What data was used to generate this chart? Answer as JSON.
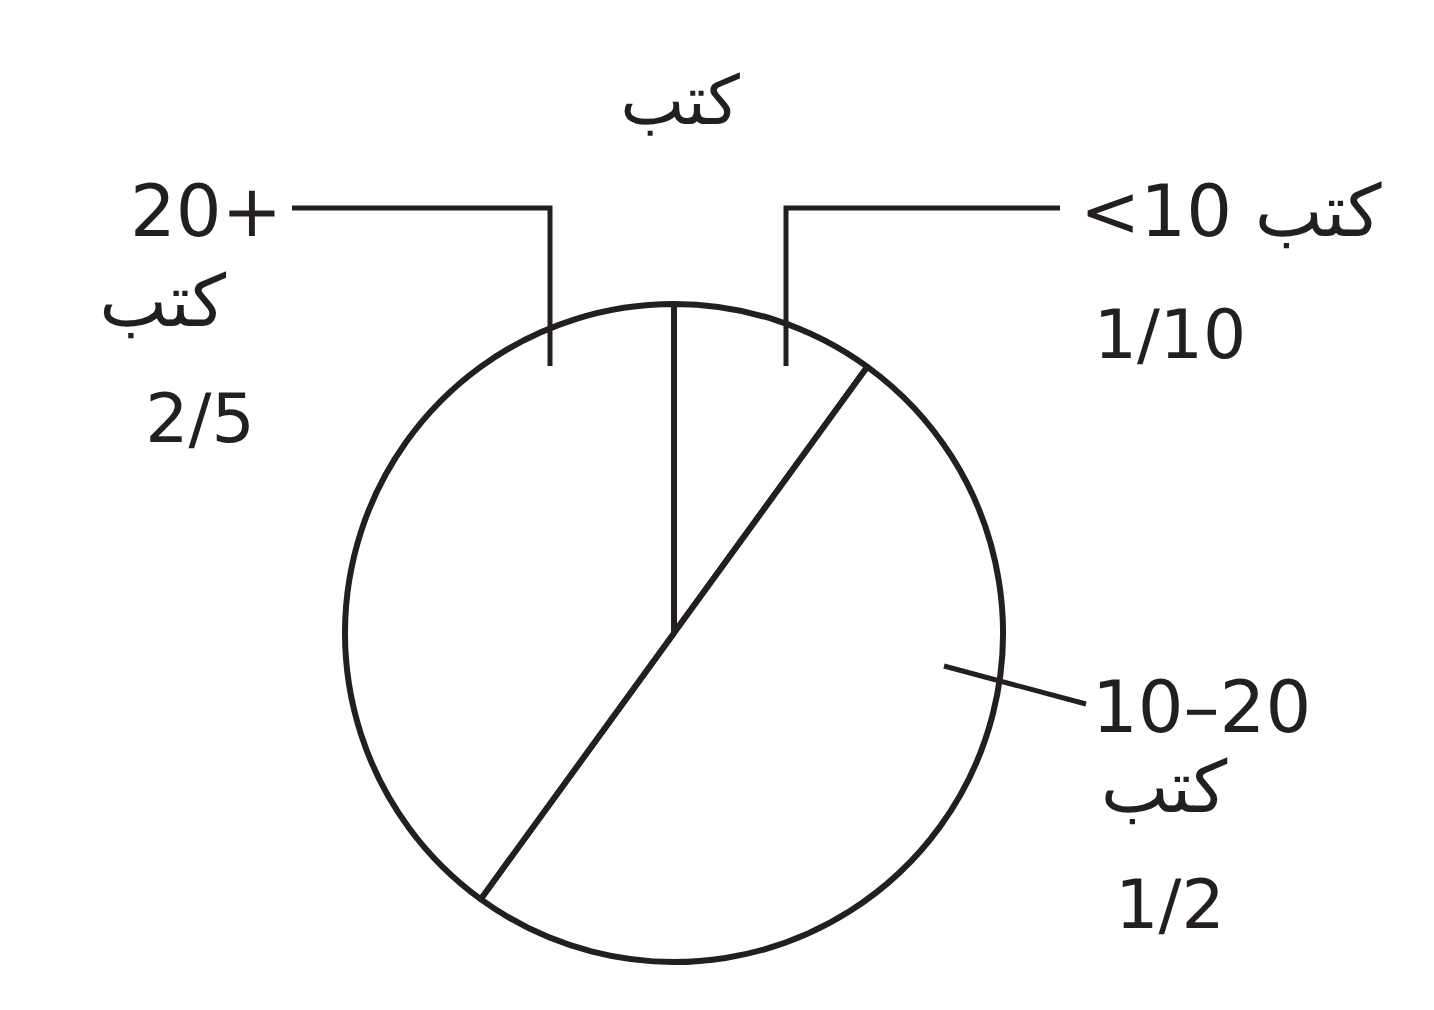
{
  "chart_data": {
    "type": "pie",
    "title": "كتب",
    "categories": [
      "<10 كتب",
      "10–20 كتب",
      "20+ كتب"
    ],
    "values": [
      0.1,
      0.5,
      0.4
    ],
    "colors": [
      "#ffffff",
      "#ffffff",
      "#ffffff"
    ],
    "value_labels": [
      "1/10",
      "1/2",
      "2/5"
    ]
  }
}
